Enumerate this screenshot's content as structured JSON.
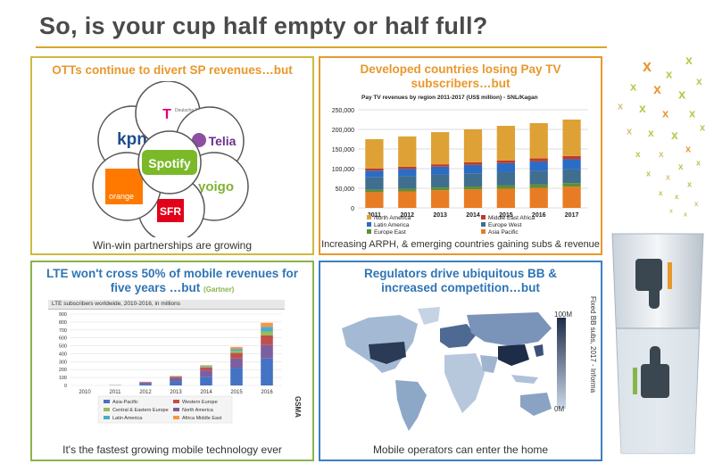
{
  "slide": {
    "title": "So, is your cup half empty or half full?"
  },
  "panels": {
    "otts": {
      "heading": "OTTs continue to divert SP revenues…but",
      "footer": "Win-win partnerships are growing",
      "center": "Spotify",
      "petals": [
        "kpn",
        "Deutsche Telekom",
        "Telia",
        "yoigo",
        "SFR",
        "orange"
      ],
      "telekom_mark": "T",
      "telekom_caption": "Deutsche Telekom"
    },
    "paytv": {
      "heading_line1": "Developed countries losing Pay TV",
      "heading_line2": "subscribers…but",
      "footer": "Increasing ARPH, & emerging countries gaining subs & revenue"
    },
    "lte": {
      "heading_line1": "LTE  won't cross 50% of mobile revenues for",
      "heading_line2": "five years …but",
      "heading_source": "(Gartner)",
      "footer": "It's the fastest growing mobile technology ever",
      "side_source": "GSMA"
    },
    "regulators": {
      "heading_line1": "Regulators drive ubiquitous BB &",
      "heading_line2": "increased competition…but",
      "footer": "Mobile operators can enter the home",
      "legend_max": "100M",
      "legend_min": "0M",
      "side_source": "Fixed BB subs, 2017 - Informa"
    }
  },
  "chart_data": [
    {
      "type": "bar",
      "stacked": true,
      "title": "Pay TV revenues by region 2011-2017 (US$ million) - SNL/Kagan",
      "categories": [
        "2011",
        "2012",
        "2013",
        "2014",
        "2015",
        "2016",
        "2017"
      ],
      "ylim": [
        0,
        250000
      ],
      "yticks": [
        "0",
        "50,000",
        "100,000",
        "150,000",
        "200,000",
        "250,000"
      ],
      "grid": true,
      "series": [
        {
          "name": "Asia Pacific",
          "color": "#e87c24",
          "values": [
            40000,
            42000,
            45000,
            47000,
            49000,
            51000,
            54000
          ]
        },
        {
          "name": "Europe East",
          "color": "#5f8f2f",
          "values": [
            6000,
            6500,
            7000,
            7500,
            8000,
            8500,
            9000
          ]
        },
        {
          "name": "Europe West",
          "color": "#3f6e8f",
          "values": [
            32000,
            32500,
            33000,
            33500,
            34000,
            34500,
            35000
          ]
        },
        {
          "name": "Latin America",
          "color": "#2b6cc4",
          "values": [
            17000,
            18500,
            20000,
            21500,
            23000,
            24500,
            26000
          ]
        },
        {
          "name": "Middle East Africa",
          "color": "#c0392b",
          "values": [
            5000,
            5500,
            6000,
            6500,
            7000,
            7500,
            8000
          ]
        },
        {
          "name": "North America",
          "color": "#dea136",
          "values": [
            75000,
            77000,
            82000,
            84000,
            88000,
            90000,
            93000
          ]
        }
      ],
      "legend": [
        "North America",
        "Middle East Africa",
        "Latin America",
        "Europe West",
        "Europe East",
        "Asia Pacific"
      ]
    },
    {
      "type": "bar",
      "stacked": true,
      "title": "LTE subscribers worldwide, 2010-2016, in millions",
      "categories": [
        "2010",
        "2011",
        "2012",
        "2013",
        "2014",
        "2015",
        "2016"
      ],
      "ylim": [
        0,
        900
      ],
      "yticks": [
        "0",
        "100",
        "200",
        "300",
        "400",
        "500",
        "600",
        "700",
        "800",
        "900"
      ],
      "grid": true,
      "series": [
        {
          "name": "Asia-Pacific",
          "color": "#4472c4",
          "values": [
            0,
            2,
            18,
            50,
            110,
            220,
            340
          ]
        },
        {
          "name": "North America",
          "color": "#7b5fa0",
          "values": [
            0,
            2,
            20,
            45,
            80,
            120,
            170
          ]
        },
        {
          "name": "Western Europe",
          "color": "#c0504d",
          "values": [
            0,
            1,
            5,
            15,
            35,
            70,
            120
          ]
        },
        {
          "name": "Central & Eastern Europe",
          "color": "#9bbb59",
          "values": [
            0,
            0,
            2,
            5,
            10,
            25,
            50
          ]
        },
        {
          "name": "Latin America",
          "color": "#4bacc6",
          "values": [
            0,
            0,
            1,
            3,
            10,
            25,
            60
          ]
        },
        {
          "name": "Africa Middle East",
          "color": "#f79646",
          "values": [
            0,
            0,
            1,
            3,
            10,
            25,
            50
          ]
        }
      ],
      "legend": [
        "Asia-Pacific",
        "Western Europe",
        "Central & Eastern Europe",
        "North America",
        "Latin America",
        "Africa Middle East"
      ]
    }
  ],
  "colors": {
    "heading_orange": "#e8982c",
    "heading_green": "#89b44a",
    "heading_blue": "#2f75b5",
    "title_text": "#4a4a4a",
    "x_mark_colors": [
      "#e8982c",
      "#b3c94a",
      "#d6c07a"
    ]
  },
  "icons": [
    "thumbs-down-icon",
    "thumbs-up-icon",
    "x-mark-icon",
    "world-map-icon",
    "water-glass-icon"
  ]
}
